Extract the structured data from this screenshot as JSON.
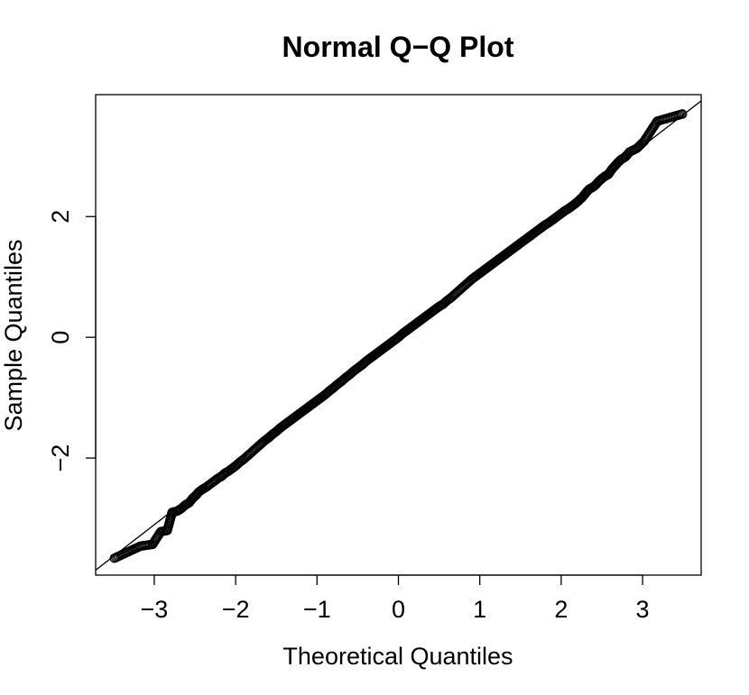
{
  "chart_data": {
    "type": "scatter",
    "title": "Normal Q−Q Plot",
    "xlabel": "Theoretical Quantiles",
    "ylabel": "Sample Quantiles",
    "xlim": [
      -3.72,
      3.72
    ],
    "ylim": [
      -3.94,
      4.02
    ],
    "x_ticks": [
      -3,
      -2,
      -1,
      0,
      1,
      2,
      3
    ],
    "x_tick_labels": [
      "−3",
      "−2",
      "−1",
      "0",
      "1",
      "2",
      "3"
    ],
    "y_ticks": [
      -2,
      0,
      2
    ],
    "y_tick_labels": [
      "−2",
      "0",
      "2"
    ],
    "marker": "open-circle",
    "grid": false,
    "reference_line": {
      "intercept": 0.03,
      "slope": 1.045
    },
    "points": [
      [
        -3.49,
        -3.66
      ],
      [
        -3.17,
        -3.46
      ],
      [
        -3.02,
        -3.43
      ],
      [
        -2.92,
        -3.22
      ],
      [
        -2.84,
        -3.2
      ],
      [
        -2.78,
        -2.9
      ],
      [
        -2.72,
        -2.88
      ],
      [
        -2.67,
        -2.84
      ],
      [
        -2.62,
        -2.78
      ],
      [
        -2.57,
        -2.74
      ],
      [
        -2.53,
        -2.67
      ],
      [
        -2.49,
        -2.62
      ],
      [
        -2.45,
        -2.56
      ],
      [
        -2.41,
        -2.52
      ],
      [
        -2.37,
        -2.49
      ],
      [
        -2.33,
        -2.45
      ],
      [
        -2.29,
        -2.41
      ],
      [
        -2.25,
        -2.37
      ],
      [
        -2.21,
        -2.33
      ],
      [
        -2.17,
        -2.3
      ],
      [
        -2.13,
        -2.25
      ],
      [
        -2.09,
        -2.22
      ],
      [
        -2.05,
        -2.18
      ],
      [
        -2.0,
        -2.13
      ],
      [
        -1.95,
        -2.07
      ],
      [
        -1.9,
        -2.02
      ],
      [
        -1.85,
        -1.96
      ],
      [
        -1.8,
        -1.9
      ],
      [
        -1.75,
        -1.84
      ],
      [
        -1.7,
        -1.78
      ],
      [
        -1.65,
        -1.72
      ],
      [
        -1.6,
        -1.67
      ],
      [
        -1.55,
        -1.61
      ],
      [
        -1.5,
        -1.56
      ],
      [
        -1.45,
        -1.5
      ],
      [
        -1.4,
        -1.45
      ],
      [
        -1.35,
        -1.4
      ],
      [
        -1.3,
        -1.35
      ],
      [
        -1.25,
        -1.3
      ],
      [
        -1.2,
        -1.25
      ],
      [
        -1.15,
        -1.2
      ],
      [
        -1.1,
        -1.15
      ],
      [
        -1.05,
        -1.1
      ],
      [
        -1.0,
        -1.05
      ],
      [
        -0.95,
        -1.0
      ],
      [
        -0.9,
        -0.95
      ],
      [
        -0.85,
        -0.89
      ],
      [
        -0.8,
        -0.84
      ],
      [
        -0.75,
        -0.78
      ],
      [
        -0.7,
        -0.73
      ],
      [
        -0.65,
        -0.67
      ],
      [
        -0.6,
        -0.62
      ],
      [
        -0.55,
        -0.56
      ],
      [
        -0.5,
        -0.51
      ],
      [
        -0.45,
        -0.46
      ],
      [
        -0.4,
        -0.4
      ],
      [
        -0.35,
        -0.35
      ],
      [
        -0.3,
        -0.3
      ],
      [
        -0.25,
        -0.25
      ],
      [
        -0.2,
        -0.2
      ],
      [
        -0.15,
        -0.15
      ],
      [
        -0.1,
        -0.1
      ],
      [
        -0.05,
        -0.05
      ],
      [
        0.0,
        0.0
      ],
      [
        0.05,
        0.06
      ],
      [
        0.1,
        0.11
      ],
      [
        0.15,
        0.16
      ],
      [
        0.2,
        0.21
      ],
      [
        0.25,
        0.26
      ],
      [
        0.3,
        0.31
      ],
      [
        0.35,
        0.36
      ],
      [
        0.4,
        0.41
      ],
      [
        0.45,
        0.46
      ],
      [
        0.5,
        0.51
      ],
      [
        0.55,
        0.55
      ],
      [
        0.6,
        0.61
      ],
      [
        0.65,
        0.66
      ],
      [
        0.7,
        0.72
      ],
      [
        0.75,
        0.78
      ],
      [
        0.8,
        0.84
      ],
      [
        0.85,
        0.9
      ],
      [
        0.9,
        0.96
      ],
      [
        0.95,
        1.01
      ],
      [
        1.0,
        1.06
      ],
      [
        1.05,
        1.11
      ],
      [
        1.1,
        1.16
      ],
      [
        1.15,
        1.21
      ],
      [
        1.2,
        1.26
      ],
      [
        1.25,
        1.31
      ],
      [
        1.3,
        1.36
      ],
      [
        1.35,
        1.41
      ],
      [
        1.4,
        1.46
      ],
      [
        1.45,
        1.51
      ],
      [
        1.5,
        1.56
      ],
      [
        1.55,
        1.61
      ],
      [
        1.6,
        1.66
      ],
      [
        1.65,
        1.71
      ],
      [
        1.7,
        1.76
      ],
      [
        1.75,
        1.81
      ],
      [
        1.8,
        1.86
      ],
      [
        1.85,
        1.9
      ],
      [
        1.9,
        1.95
      ],
      [
        1.95,
        2.0
      ],
      [
        2.0,
        2.05
      ],
      [
        2.05,
        2.1
      ],
      [
        2.1,
        2.14
      ],
      [
        2.14,
        2.18
      ],
      [
        2.18,
        2.22
      ],
      [
        2.22,
        2.27
      ],
      [
        2.26,
        2.32
      ],
      [
        2.29,
        2.37
      ],
      [
        2.32,
        2.42
      ],
      [
        2.35,
        2.46
      ],
      [
        2.38,
        2.48
      ],
      [
        2.42,
        2.52
      ],
      [
        2.46,
        2.58
      ],
      [
        2.5,
        2.63
      ],
      [
        2.54,
        2.67
      ],
      [
        2.58,
        2.7
      ],
      [
        2.62,
        2.78
      ],
      [
        2.66,
        2.84
      ],
      [
        2.7,
        2.9
      ],
      [
        2.74,
        2.95
      ],
      [
        2.79,
        2.99
      ],
      [
        2.84,
        3.07
      ],
      [
        2.93,
        3.13
      ],
      [
        3.02,
        3.25
      ],
      [
        3.18,
        3.58
      ],
      [
        3.49,
        3.7
      ]
    ]
  }
}
